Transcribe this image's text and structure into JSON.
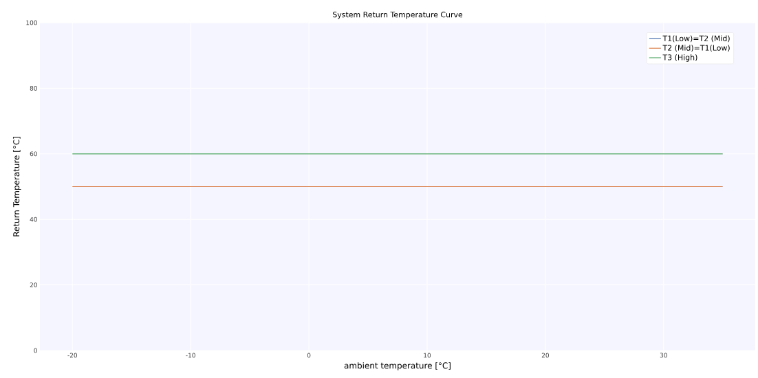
{
  "chart_data": {
    "type": "line",
    "title": "System Return Temperature Curve",
    "xlabel": "ambient temperature [°C]",
    "ylabel": "Return Temperature [°C]",
    "x": [
      -20,
      35
    ],
    "series": [
      {
        "name": "T1(Low)=T2 (Mid)",
        "color": "#4c72b0",
        "values": [
          null,
          null
        ]
      },
      {
        "name": "T2 (Mid)=T1(Low)",
        "color": "#dd8452",
        "values": [
          50,
          50
        ]
      },
      {
        "name": "T3 (High)",
        "color": "#55a868",
        "values": [
          60,
          60
        ]
      }
    ],
    "xlim": [
      -22.75,
      37.75
    ],
    "ylim": [
      0,
      100
    ],
    "xticks": [
      -20,
      -10,
      0,
      10,
      20,
      30
    ],
    "yticks": [
      0,
      20,
      40,
      60,
      80,
      100
    ],
    "grid": true,
    "legend": "top right",
    "marker": "none",
    "line_style": "solid"
  }
}
